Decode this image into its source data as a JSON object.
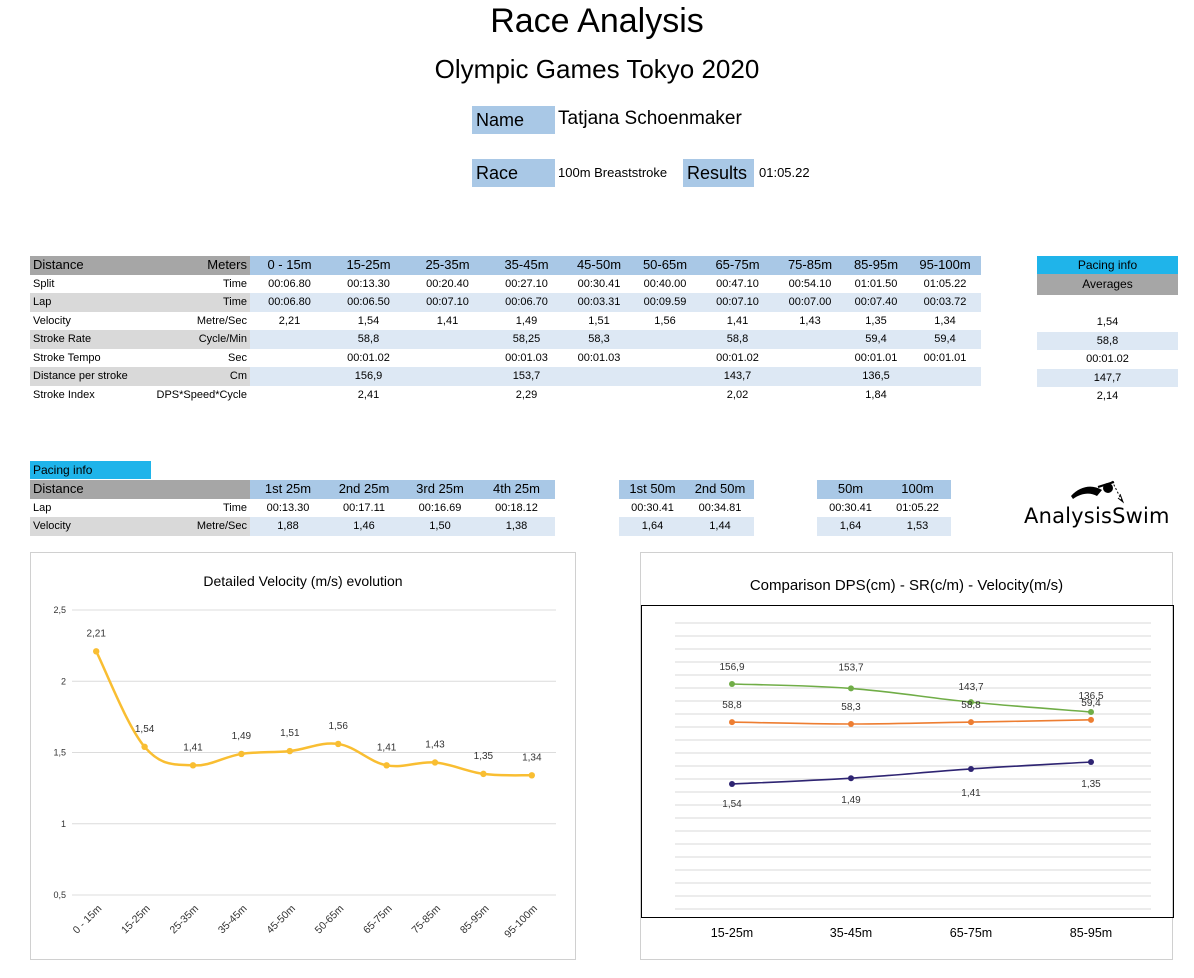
{
  "header": {
    "title": "Race Analysis",
    "subtitle": "Olympic Games Tokyo 2020"
  },
  "info": {
    "name_label": "Name",
    "name_value": "Tatjana Schoenmaker",
    "race_label": "Race",
    "race_value": "100m Breaststroke",
    "results_label": "Results",
    "results_value": "01:05.22"
  },
  "main_table": {
    "header": {
      "label": "Distance",
      "unit": "Meters",
      "cols": [
        "0 - 15m",
        "15-25m",
        "25-35m",
        "35-45m",
        "45-50m",
        "50-65m",
        "65-75m",
        "75-85m",
        "85-95m",
        "95-100m"
      ]
    },
    "rows": [
      {
        "label": "Split",
        "unit": "Time",
        "cells": [
          "00:06.80",
          "00:13.30",
          "00:20.40",
          "00:27.10",
          "00:30.41",
          "00:40.00",
          "00:47.10",
          "00:54.10",
          "01:01.50",
          "01:05.22"
        ]
      },
      {
        "label": "Lap",
        "unit": "Time",
        "cells": [
          "00:06.80",
          "00:06.50",
          "00:07.10",
          "00:06.70",
          "00:03.31",
          "00:09.59",
          "00:07.10",
          "00:07.00",
          "00:07.40",
          "00:03.72"
        ]
      },
      {
        "label": "Velocity",
        "unit": "Metre/Sec",
        "cells": [
          "2,21",
          "1,54",
          "1,41",
          "1,49",
          "1,51",
          "1,56",
          "1,41",
          "1,43",
          "1,35",
          "1,34"
        ]
      },
      {
        "label": "Stroke Rate",
        "unit": "Cycle/Min",
        "cells": [
          "",
          "58,8",
          "",
          "58,25",
          "58,3",
          "",
          "58,8",
          "",
          "59,4",
          "59,4"
        ]
      },
      {
        "label": "Stroke Tempo",
        "unit": "Sec",
        "cells": [
          "",
          "00:01.02",
          "",
          "00:01.03",
          "00:01.03",
          "",
          "00:01.02",
          "",
          "00:01.01",
          "00:01.01"
        ]
      },
      {
        "label": "Distance per stroke",
        "unit": "Cm",
        "cells": [
          "",
          "156,9",
          "",
          "153,7",
          "",
          "",
          "143,7",
          "",
          "136,5",
          ""
        ]
      },
      {
        "label": "Stroke Index",
        "unit": "DPS*Speed*Cycle",
        "cells": [
          "",
          "2,41",
          "",
          "2,29",
          "",
          "",
          "2,02",
          "",
          "1,84",
          ""
        ]
      }
    ]
  },
  "averages": {
    "pacing_label": "Pacing info",
    "title": "Averages",
    "values": [
      "1,54",
      "58,8",
      "00:01.02",
      "147,7",
      "2,14"
    ]
  },
  "pacing": {
    "tag": "Pacing info",
    "distance_label": "Distance",
    "lap_label": "Lap",
    "lap_unit": "Time",
    "vel_label": "Velocity",
    "vel_unit": "Metre/Sec",
    "quarters": {
      "cols": [
        "1st 25m",
        "2nd 25m",
        "3rd 25m",
        "4th 25m"
      ],
      "lap": [
        "00:13.30",
        "00:17.11",
        "00:16.69",
        "00:18.12"
      ],
      "vel": [
        "1,88",
        "1,46",
        "1,50",
        "1,38"
      ]
    },
    "halves": {
      "cols": [
        "1st 50m",
        "2nd 50m"
      ],
      "lap": [
        "00:30.41",
        "00:34.81"
      ],
      "vel": [
        "1,64",
        "1,44"
      ]
    },
    "totals": {
      "cols": [
        "50m",
        "100m"
      ],
      "lap": [
        "00:30.41",
        "01:05.22"
      ],
      "vel": [
        "1,64",
        "1,53"
      ]
    }
  },
  "logo": {
    "text": "AnalysisSwim"
  },
  "colors": {
    "label_blue": "#a9c8e6",
    "cyan": "#1fb4ea",
    "gray_header": "#a6a6a6",
    "velocity_line": "#f9be32",
    "dps_line": "#70ad47",
    "sr_line": "#ed7d31",
    "vel_line2": "#2e2472"
  },
  "chart_data": [
    {
      "type": "line",
      "title": "Detailed Velocity (m/s)  evolution",
      "categories": [
        "0 - 15m",
        "15-25m",
        "25-35m",
        "35-45m",
        "45-50m",
        "50-65m",
        "65-75m",
        "75-85m",
        "85-95m",
        "95-100m"
      ],
      "values": [
        2.21,
        1.54,
        1.41,
        1.49,
        1.51,
        1.56,
        1.41,
        1.43,
        1.35,
        1.34
      ],
      "labels": [
        "2,21",
        "1,54",
        "1,41",
        "1,49",
        "1,51",
        "1,56",
        "1,41",
        "1,43",
        "1,35",
        "1,34"
      ],
      "ylim": [
        0.5,
        2.5
      ],
      "yticks": [
        "0,5",
        "1",
        "1,5",
        "2",
        "2,5"
      ],
      "xlabel": "",
      "ylabel": ""
    },
    {
      "type": "line",
      "title": "Comparison DPS(cm) - SR(c/m) - Velocity(m/s)",
      "categories": [
        "15-25m",
        "35-45m",
        "65-75m",
        "85-95m"
      ],
      "series": [
        {
          "name": "DPS",
          "values": [
            156.9,
            153.7,
            143.7,
            136.5
          ],
          "labels": [
            "156,9",
            "153,7",
            "143,7",
            "136,5"
          ]
        },
        {
          "name": "SR",
          "values": [
            58.8,
            58.3,
            58.8,
            59.4
          ],
          "labels": [
            "58,8",
            "58,3",
            "58,8",
            "59,4"
          ]
        },
        {
          "name": "Velocity",
          "values": [
            1.54,
            1.49,
            1.41,
            1.35
          ],
          "labels": [
            "1,54",
            "1,49",
            "1,41",
            "1,35"
          ]
        }
      ]
    }
  ]
}
